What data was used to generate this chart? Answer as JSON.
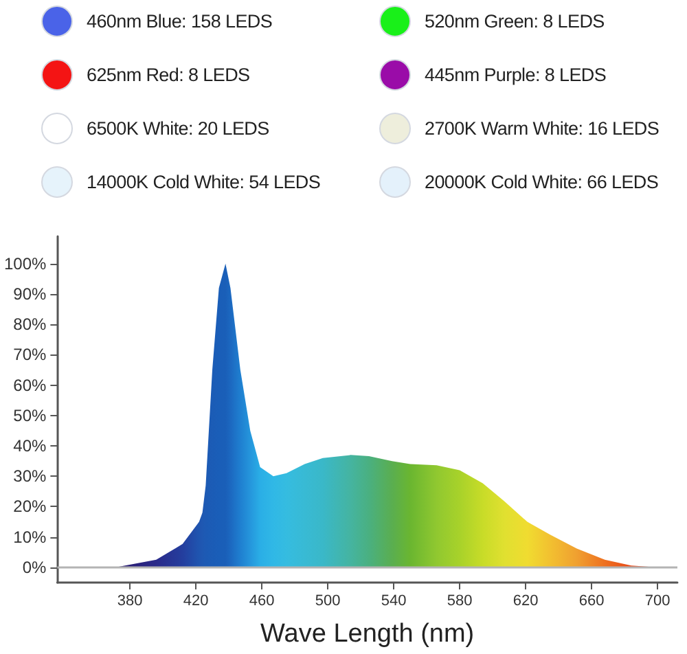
{
  "chart_data": [
    {
      "type": "other",
      "annotations": [
        "460nm Blue: 158 LEDS",
        "520nm Green: 8 LEDS",
        "625nm Red: 8 LEDS",
        "445nm Purple: 8 LEDS",
        "6500K White: 20 LEDS",
        "2700K Warm White: 16 LEDS",
        "14000K Cold White: 54 LEDS",
        "20000K Cold White: 66 LEDS"
      ],
      "colors": [
        "#4a63e8",
        "#19f019",
        "#f41414",
        "#9a0ca8",
        "#ffffff",
        "#eeeedc",
        "#e6f3fb",
        "#e4f1fb"
      ]
    },
    {
      "type": "area",
      "xlabel": "Wave Length (nm)",
      "x": [
        371,
        396,
        412,
        422,
        424,
        426,
        430,
        434,
        438,
        441,
        447,
        453,
        459,
        467,
        475,
        486,
        497,
        514,
        525,
        539,
        550,
        566,
        580,
        594,
        607,
        621,
        635,
        651,
        668,
        684,
        701
      ],
      "values": [
        0,
        2.5,
        7.7,
        15,
        18,
        27,
        65,
        92,
        100,
        92,
        65,
        45,
        33,
        30,
        31,
        34,
        36,
        37,
        36.6,
        35,
        34,
        33.6,
        32,
        27.7,
        21.8,
        15,
        10.7,
        6.2,
        2.5,
        0.6,
        0
      ],
      "colors": [
        "#2a1a6e",
        "#2a2a8a",
        "#243e9e",
        "#1f55b0",
        "#1f58b2",
        "#1d5ab4",
        "#1b5cb6",
        "#1a5eb8",
        "#1a5fb8",
        "#1c68c0",
        "#1f7fd0",
        "#2596dc",
        "#2aaee6",
        "#30b8e6",
        "#35bce0",
        "#38bad4",
        "#3ab8c8",
        "#45b4a0",
        "#4ab080",
        "#5aae50",
        "#6ab630",
        "#90c830",
        "#a8d22a",
        "#c8dc28",
        "#e0e030",
        "#f0dc30",
        "#f2c030",
        "#f0a030",
        "#ee7020",
        "#e84a18",
        "#e03010"
      ],
      "xlim": [
        336,
        712
      ],
      "xticks": [
        380,
        420,
        460,
        500,
        540,
        580,
        620,
        660,
        700
      ],
      "ylim": [
        -5,
        109
      ],
      "yticks": [
        {
          "value": 0,
          "label": "0%"
        },
        {
          "value": 10,
          "label": "10%"
        },
        {
          "value": 20,
          "label": "20%"
        },
        {
          "value": 30,
          "label": "30%"
        },
        {
          "value": 40,
          "label": "40%"
        },
        {
          "value": 50,
          "label": "50%"
        },
        {
          "value": 60,
          "label": "60%"
        },
        {
          "value": 70,
          "label": "70%"
        },
        {
          "value": 80,
          "label": "80%"
        },
        {
          "value": 90,
          "label": "90%"
        },
        {
          "value": 100,
          "label": "100%"
        }
      ],
      "ref_lines": [
        {
          "axis": "y",
          "value": 0,
          "color": "#b4b4b4"
        }
      ],
      "grid": false,
      "marker": "none"
    }
  ]
}
